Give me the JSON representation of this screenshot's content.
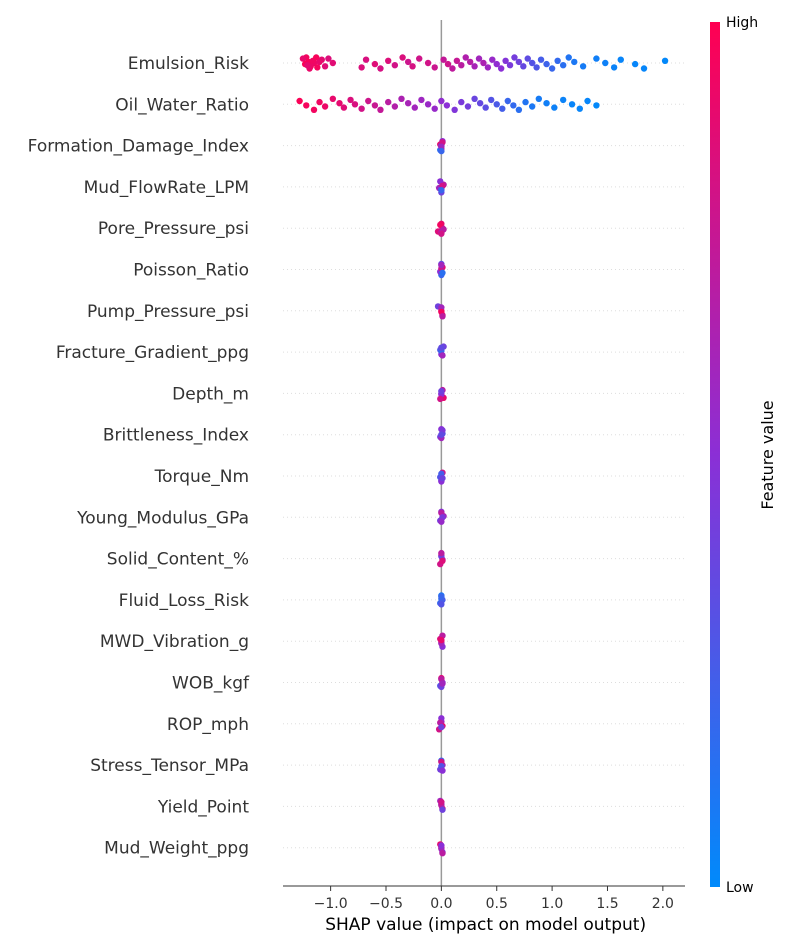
{
  "chart_data": {
    "type": "scatter",
    "subtype": "shap-beeswarm",
    "xlabel": "SHAP value (impact on model output)",
    "xlim": [
      -1.43,
      2.2
    ],
    "xticks": [
      -1.0,
      -0.5,
      0.0,
      0.5,
      1.0,
      1.5,
      2.0
    ],
    "xtick_labels": [
      "−1.0",
      "−0.5",
      "0.0",
      "0.5",
      "1.0",
      "1.5",
      "2.0"
    ],
    "colorbar": {
      "title": "Feature value",
      "high_label": "High",
      "low_label": "Low",
      "high_color": "#ff0052",
      "low_color": "#008afb"
    },
    "grid": false,
    "features": [
      {
        "name": "Emulsion_Risk",
        "points": [
          [
            -1.22,
            0.95
          ],
          [
            -1.2,
            0.97
          ],
          [
            -1.18,
            0.93
          ],
          [
            -1.25,
            0.9
          ],
          [
            -1.15,
            0.92
          ],
          [
            -1.12,
            0.96
          ],
          [
            -1.08,
            0.88
          ],
          [
            -1.23,
            0.98
          ],
          [
            -1.19,
            0.91
          ],
          [
            -1.16,
            0.94
          ],
          [
            -1.21,
            0.89
          ],
          [
            -1.13,
            0.97
          ],
          [
            -1.1,
            0.9
          ],
          [
            -1.05,
            0.86
          ],
          [
            -1.02,
            0.85
          ],
          [
            -0.98,
            0.87
          ],
          [
            -0.72,
            0.84
          ],
          [
            -0.68,
            0.83
          ],
          [
            -0.6,
            0.86
          ],
          [
            -0.55,
            0.82
          ],
          [
            -0.48,
            0.85
          ],
          [
            -0.42,
            0.8
          ],
          [
            -0.35,
            0.84
          ],
          [
            -0.3,
            0.78
          ],
          [
            -0.26,
            0.82
          ],
          [
            -0.2,
            0.79
          ],
          [
            -0.12,
            0.8
          ],
          [
            -0.06,
            0.77
          ],
          [
            0.02,
            0.74
          ],
          [
            0.06,
            0.78
          ],
          [
            0.1,
            0.72
          ],
          [
            0.14,
            0.75
          ],
          [
            0.18,
            0.7
          ],
          [
            0.22,
            0.66
          ],
          [
            0.26,
            0.68
          ],
          [
            0.3,
            0.62
          ],
          [
            0.34,
            0.6
          ],
          [
            0.38,
            0.64
          ],
          [
            0.42,
            0.58
          ],
          [
            0.46,
            0.55
          ],
          [
            0.5,
            0.52
          ],
          [
            0.54,
            0.5
          ],
          [
            0.58,
            0.47
          ],
          [
            0.62,
            0.44
          ],
          [
            0.66,
            0.42
          ],
          [
            0.7,
            0.4
          ],
          [
            0.74,
            0.36
          ],
          [
            0.78,
            0.34
          ],
          [
            0.82,
            0.3
          ],
          [
            0.86,
            0.28
          ],
          [
            0.9,
            0.25
          ],
          [
            0.95,
            0.22
          ],
          [
            1.0,
            0.2
          ],
          [
            1.05,
            0.18
          ],
          [
            1.1,
            0.15
          ],
          [
            1.15,
            0.12
          ],
          [
            1.2,
            0.1
          ],
          [
            1.28,
            0.08
          ],
          [
            1.4,
            0.06
          ],
          [
            1.48,
            0.05
          ],
          [
            1.56,
            0.04
          ],
          [
            1.62,
            0.03
          ],
          [
            1.75,
            0.02
          ],
          [
            1.83,
            0.02
          ],
          [
            2.02,
            0.01
          ]
        ]
      },
      {
        "name": "Oil_Water_Ratio",
        "points": [
          [
            -1.28,
            0.98
          ],
          [
            -1.22,
            0.96
          ],
          [
            -1.15,
            0.95
          ],
          [
            -1.1,
            0.94
          ],
          [
            -1.05,
            0.92
          ],
          [
            -0.98,
            0.9
          ],
          [
            -0.92,
            0.89
          ],
          [
            -0.88,
            0.86
          ],
          [
            -0.82,
            0.84
          ],
          [
            -0.78,
            0.83
          ],
          [
            -0.72,
            0.8
          ],
          [
            -0.66,
            0.78
          ],
          [
            -0.6,
            0.76
          ],
          [
            -0.55,
            0.74
          ],
          [
            -0.48,
            0.7
          ],
          [
            -0.42,
            0.67
          ],
          [
            -0.36,
            0.64
          ],
          [
            -0.3,
            0.62
          ],
          [
            -0.24,
            0.6
          ],
          [
            -0.18,
            0.58
          ],
          [
            -0.12,
            0.56
          ],
          [
            -0.06,
            0.55
          ],
          [
            0.0,
            0.52
          ],
          [
            0.05,
            0.5
          ],
          [
            0.12,
            0.46
          ],
          [
            0.18,
            0.44
          ],
          [
            0.24,
            0.42
          ],
          [
            0.3,
            0.38
          ],
          [
            0.35,
            0.36
          ],
          [
            0.4,
            0.33
          ],
          [
            0.45,
            0.3
          ],
          [
            0.5,
            0.27
          ],
          [
            0.55,
            0.24
          ],
          [
            0.6,
            0.2
          ],
          [
            0.65,
            0.18
          ],
          [
            0.7,
            0.15
          ],
          [
            0.76,
            0.12
          ],
          [
            0.82,
            0.1
          ],
          [
            0.88,
            0.08
          ],
          [
            0.95,
            0.06
          ],
          [
            1.02,
            0.05
          ],
          [
            1.1,
            0.04
          ],
          [
            1.18,
            0.03
          ],
          [
            1.25,
            0.03
          ],
          [
            1.32,
            0.02
          ],
          [
            1.4,
            0.01
          ]
        ]
      },
      {
        "name": "Formation_Damage_Index",
        "points": [
          [
            -0.01,
            0.9
          ],
          [
            0.0,
            0.7
          ],
          [
            0.01,
            0.5
          ],
          [
            0.0,
            0.3
          ],
          [
            -0.01,
            0.15
          ],
          [
            0.01,
            0.8
          ],
          [
            0.0,
            0.6
          ],
          [
            0.0,
            0.2
          ]
        ]
      },
      {
        "name": "Mud_FlowRate_LPM",
        "points": [
          [
            -0.02,
            0.6
          ],
          [
            0.0,
            0.4
          ],
          [
            0.02,
            0.7
          ],
          [
            0.0,
            0.3
          ],
          [
            -0.01,
            0.5
          ],
          [
            0.01,
            0.8
          ],
          [
            0.0,
            0.2
          ]
        ]
      },
      {
        "name": "Pore_Pressure_psi",
        "points": [
          [
            -0.03,
            0.85
          ],
          [
            0.0,
            0.9
          ],
          [
            0.01,
            0.75
          ],
          [
            0.0,
            0.6
          ],
          [
            -0.01,
            0.95
          ],
          [
            0.02,
            0.7
          ],
          [
            0.0,
            0.8
          ]
        ]
      },
      {
        "name": "Poisson_Ratio",
        "points": [
          [
            0.0,
            0.2
          ],
          [
            0.01,
            0.9
          ],
          [
            -0.01,
            0.5
          ],
          [
            0.0,
            0.35
          ],
          [
            0.0,
            0.8
          ],
          [
            0.01,
            0.15
          ],
          [
            0.0,
            0.6
          ]
        ]
      },
      {
        "name": "Pump_Pressure_psi",
        "points": [
          [
            -0.03,
            0.4
          ],
          [
            0.0,
            0.9
          ],
          [
            0.01,
            0.85
          ],
          [
            0.0,
            0.6
          ],
          [
            0.0,
            0.95
          ],
          [
            0.01,
            0.7
          ]
        ]
      },
      {
        "name": "Fracture_Gradient_ppg",
        "points": [
          [
            -0.01,
            0.3
          ],
          [
            0.0,
            0.5
          ],
          [
            0.02,
            0.4
          ],
          [
            0.0,
            0.2
          ],
          [
            0.01,
            0.6
          ],
          [
            0.0,
            0.35
          ]
        ]
      },
      {
        "name": "Depth_m",
        "points": [
          [
            0.0,
            0.6
          ],
          [
            0.02,
            0.9
          ],
          [
            0.01,
            0.7
          ],
          [
            0.0,
            0.5
          ],
          [
            -0.01,
            0.8
          ],
          [
            0.0,
            0.4
          ]
        ]
      },
      {
        "name": "Brittleness_Index",
        "points": [
          [
            -0.01,
            0.4
          ],
          [
            0.0,
            0.5
          ],
          [
            0.01,
            0.3
          ],
          [
            0.0,
            0.6
          ],
          [
            0.01,
            0.45
          ],
          [
            0.0,
            0.35
          ]
        ]
      },
      {
        "name": "Torque_Nm",
        "points": [
          [
            0.0,
            0.2
          ],
          [
            0.01,
            0.8
          ],
          [
            -0.01,
            0.3
          ],
          [
            0.0,
            0.5
          ],
          [
            0.0,
            0.25
          ],
          [
            0.01,
            0.4
          ]
        ]
      },
      {
        "name": "Young_Modulus_GPa",
        "points": [
          [
            0.0,
            0.5
          ],
          [
            0.02,
            0.6
          ],
          [
            -0.01,
            0.4
          ],
          [
            0.0,
            0.7
          ],
          [
            0.01,
            0.45
          ],
          [
            0.0,
            0.55
          ]
        ]
      },
      {
        "name": "Solid_Content_%",
        "points": [
          [
            0.0,
            0.9
          ],
          [
            0.01,
            0.6
          ],
          [
            -0.01,
            0.8
          ],
          [
            0.0,
            0.4
          ],
          [
            0.01,
            0.85
          ],
          [
            0.0,
            0.7
          ]
        ]
      },
      {
        "name": "Fluid_Loss_Risk",
        "points": [
          [
            0.0,
            0.15
          ],
          [
            -0.01,
            0.2
          ],
          [
            0.0,
            0.1
          ],
          [
            0.01,
            0.25
          ],
          [
            0.0,
            0.3
          ],
          [
            0.0,
            0.2
          ]
        ]
      },
      {
        "name": "MWD_Vibration_g",
        "points": [
          [
            0.0,
            0.75
          ],
          [
            0.01,
            0.5
          ],
          [
            -0.01,
            0.85
          ],
          [
            0.0,
            0.6
          ],
          [
            0.01,
            0.7
          ],
          [
            0.0,
            0.9
          ]
        ]
      },
      {
        "name": "WOB_kgf",
        "points": [
          [
            -0.01,
            0.3
          ],
          [
            0.0,
            0.85
          ],
          [
            0.01,
            0.5
          ],
          [
            0.0,
            0.4
          ],
          [
            0.0,
            0.7
          ],
          [
            0.01,
            0.6
          ]
        ]
      },
      {
        "name": "ROP_mph",
        "points": [
          [
            -0.02,
            0.8
          ],
          [
            0.0,
            0.6
          ],
          [
            0.01,
            0.9
          ],
          [
            0.0,
            0.5
          ],
          [
            -0.01,
            0.7
          ],
          [
            0.0,
            0.4
          ]
        ]
      },
      {
        "name": "Stress_Tensor_MPa",
        "points": [
          [
            0.0,
            0.2
          ],
          [
            0.01,
            0.6
          ],
          [
            -0.01,
            0.4
          ],
          [
            0.0,
            0.8
          ],
          [
            0.0,
            0.3
          ],
          [
            0.01,
            0.5
          ]
        ]
      },
      {
        "name": "Yield_Point",
        "points": [
          [
            0.0,
            0.5
          ],
          [
            0.01,
            0.9
          ],
          [
            -0.01,
            0.6
          ],
          [
            0.0,
            0.7
          ],
          [
            0.01,
            0.4
          ],
          [
            0.0,
            0.8
          ]
        ]
      },
      {
        "name": "Mud_Weight_ppg",
        "points": [
          [
            0.0,
            0.85
          ],
          [
            0.01,
            0.4
          ],
          [
            -0.01,
            0.9
          ],
          [
            0.0,
            0.6
          ],
          [
            0.01,
            0.7
          ],
          [
            0.0,
            0.5
          ]
        ]
      }
    ]
  }
}
